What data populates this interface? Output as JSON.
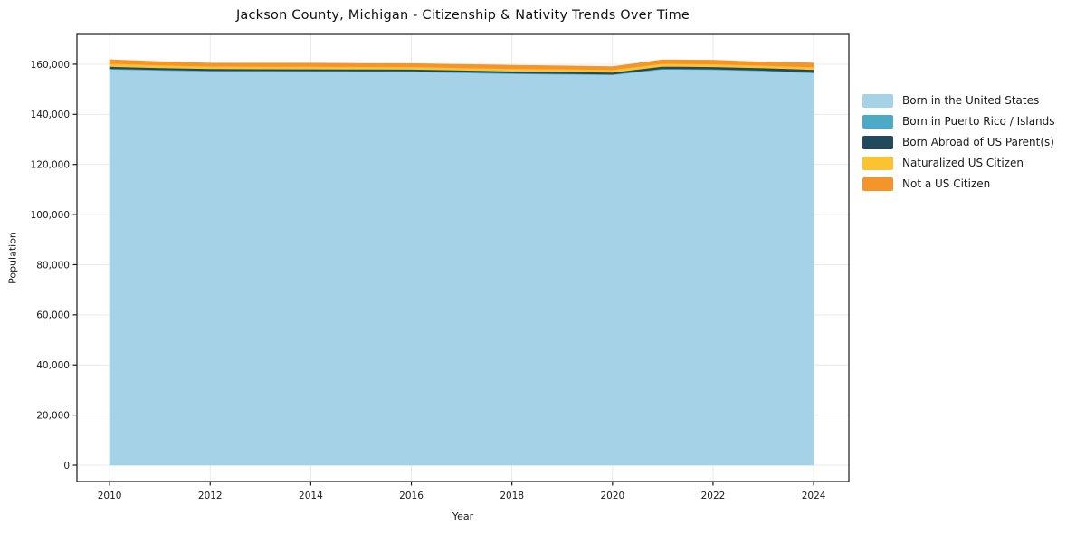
{
  "figure_title": "Jackson County, Michigan - Citizenship & Nativity Trends Over Time",
  "chart_data": {
    "type": "area",
    "stacked": true,
    "title": "Jackson County, Michigan - Citizenship & Nativity Trends Over Time",
    "xlabel": "Year",
    "ylabel": "Population",
    "x": [
      2010,
      2011,
      2012,
      2013,
      2014,
      2015,
      2016,
      2017,
      2018,
      2019,
      2020,
      2021,
      2022,
      2023,
      2024
    ],
    "series": [
      {
        "name": "Born in the United States",
        "color": "#a6d2e7",
        "values": [
          158000,
          157550,
          157200,
          157150,
          157100,
          157050,
          157000,
          156600,
          156200,
          156000,
          155800,
          158000,
          157800,
          157300,
          156500
        ]
      },
      {
        "name": "Born in Puerto Rico / Islands",
        "color": "#4baac5",
        "values": [
          300,
          300,
          300,
          300,
          300,
          300,
          300,
          300,
          300,
          300,
          250,
          300,
          300,
          300,
          300
        ]
      },
      {
        "name": "Born Abroad of US Parent(s)",
        "color": "#234a5c",
        "values": [
          800,
          750,
          700,
          700,
          700,
          700,
          700,
          720,
          750,
          750,
          750,
          900,
          900,
          950,
          1100
        ]
      },
      {
        "name": "Naturalized US Citizen",
        "color": "#fcc330",
        "values": [
          1200,
          1100,
          1000,
          1000,
          1000,
          1000,
          1000,
          1000,
          1050,
          1050,
          1000,
          1100,
          1100,
          1000,
          1000
        ]
      },
      {
        "name": "Not a US Citizen",
        "color": "#f6942c",
        "values": [
          1500,
          1300,
          1200,
          1250,
          1300,
          1250,
          1250,
          1300,
          1300,
          1250,
          1200,
          1400,
          1500,
          1300,
          1600
        ]
      }
    ],
    "xticks": [
      2010,
      2012,
      2014,
      2016,
      2018,
      2020,
      2022,
      2024
    ],
    "xtick_labels": [
      "2010",
      "2012",
      "2014",
      "2016",
      "2018",
      "2020",
      "2022",
      "2024"
    ],
    "yticks": [
      0,
      20000,
      40000,
      60000,
      80000,
      100000,
      120000,
      140000,
      160000
    ],
    "ytick_labels": [
      "0",
      "20,000",
      "40,000",
      "60,000",
      "80,000",
      "100,000",
      "120,000",
      "140,000",
      "160,000"
    ],
    "xlim": [
      2009.35,
      2024.7
    ],
    "ylim": [
      -6500,
      171900
    ],
    "grid": true,
    "grid_color": "#e9e9e9",
    "spine_color": "#1a1a1a",
    "text_color": "#1a1a1a",
    "legend_position": "right"
  }
}
